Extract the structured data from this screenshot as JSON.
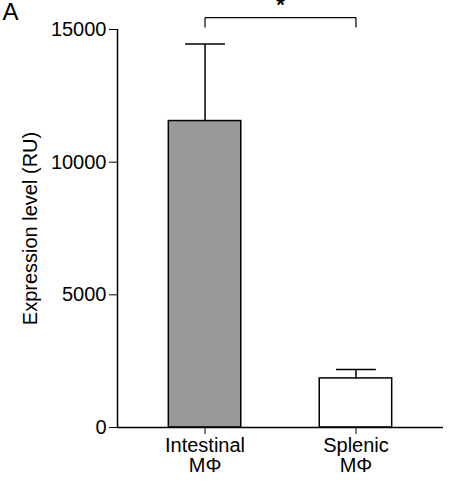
{
  "chart_data": {
    "type": "bar",
    "panel_label": "A",
    "categories": [
      "Intestinal\nMΦ",
      "Splenic\nMΦ"
    ],
    "values": [
      11550,
      1850
    ],
    "errors": [
      2900,
      340
    ],
    "colors": [
      "#999999",
      "#ffffff"
    ],
    "ylabel": "Expression level (RU)",
    "ylim": [
      0,
      15000
    ],
    "yticks": [
      0,
      5000,
      10000,
      15000
    ],
    "grid": false,
    "significance": {
      "label": "*",
      "between": [
        0,
        1
      ],
      "y": 15450
    }
  }
}
